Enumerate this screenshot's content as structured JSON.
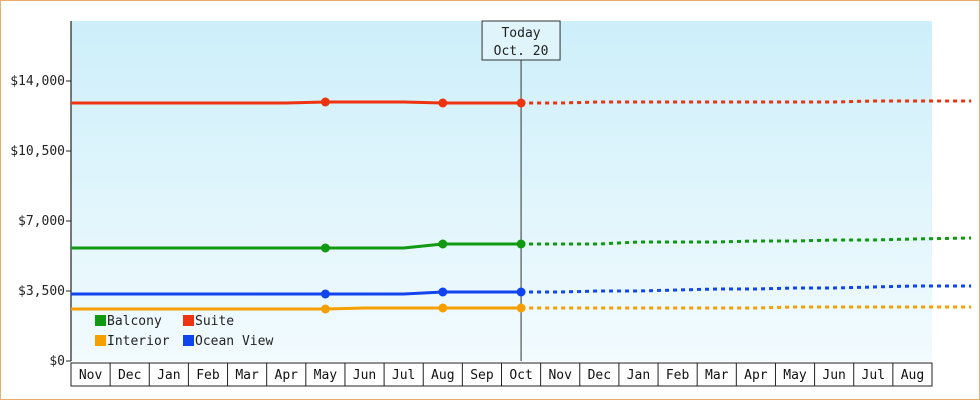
{
  "chart_data": {
    "type": "line",
    "title": "",
    "xlabel": "",
    "ylabel": "",
    "ylim": [
      0,
      17000
    ],
    "yticks": [
      {
        "value": 0,
        "label": "$0"
      },
      {
        "value": 3500,
        "label": "$3,500"
      },
      {
        "value": 7000,
        "label": "$7,000"
      },
      {
        "value": 10500,
        "label": "$10,500"
      },
      {
        "value": 14000,
        "label": "$14,000"
      }
    ],
    "categories": [
      "Nov",
      "Dec",
      "Jan",
      "Feb",
      "Mar",
      "Apr",
      "May",
      "Jun",
      "Jul",
      "Aug",
      "Sep",
      "Oct",
      "Nov",
      "Dec",
      "Jan",
      "Feb",
      "Mar",
      "Apr",
      "May",
      "Jun",
      "Jul",
      "Aug"
    ],
    "today_index": 11,
    "today": {
      "line1": "Today",
      "line2": "Oct. 20"
    },
    "grid": false,
    "background": {
      "top": "#cdeffa",
      "bottom": "#f2fbfe"
    },
    "legend": {
      "position": "bottom-left"
    },
    "series": [
      {
        "name": "Balcony",
        "color": "#119911",
        "actual": [
          5650,
          5650,
          5650,
          5650,
          5650,
          5650,
          5650,
          5650,
          5650,
          5850,
          5850,
          5850
        ],
        "markers": [
          6,
          9,
          11
        ],
        "forecast": [
          5850,
          5850,
          5950,
          5950,
          5950,
          6000,
          6000,
          6050,
          6050,
          6100,
          6150
        ]
      },
      {
        "name": "Suite",
        "color": "#ee3311",
        "actual": [
          12900,
          12900,
          12900,
          12900,
          12900,
          12900,
          12950,
          12950,
          12950,
          12900,
          12900,
          12900
        ],
        "markers": [
          6,
          9,
          11
        ],
        "forecast": [
          12900,
          12950,
          12950,
          12950,
          12950,
          12950,
          12950,
          12950,
          13000,
          13000,
          13000
        ]
      },
      {
        "name": "Interior",
        "color": "#f5a000",
        "actual": [
          2600,
          2600,
          2600,
          2600,
          2600,
          2600,
          2600,
          2650,
          2650,
          2650,
          2650,
          2650
        ],
        "markers": [
          6,
          9,
          11
        ],
        "forecast": [
          2650,
          2650,
          2650,
          2650,
          2650,
          2650,
          2700,
          2700,
          2700,
          2700,
          2700
        ]
      },
      {
        "name": "Ocean View",
        "color": "#1144ee",
        "actual": [
          3350,
          3350,
          3350,
          3350,
          3350,
          3350,
          3350,
          3350,
          3350,
          3450,
          3450,
          3450
        ],
        "markers": [
          6,
          9,
          11
        ],
        "forecast": [
          3450,
          3500,
          3500,
          3550,
          3600,
          3600,
          3650,
          3650,
          3700,
          3750,
          3750
        ]
      }
    ]
  }
}
